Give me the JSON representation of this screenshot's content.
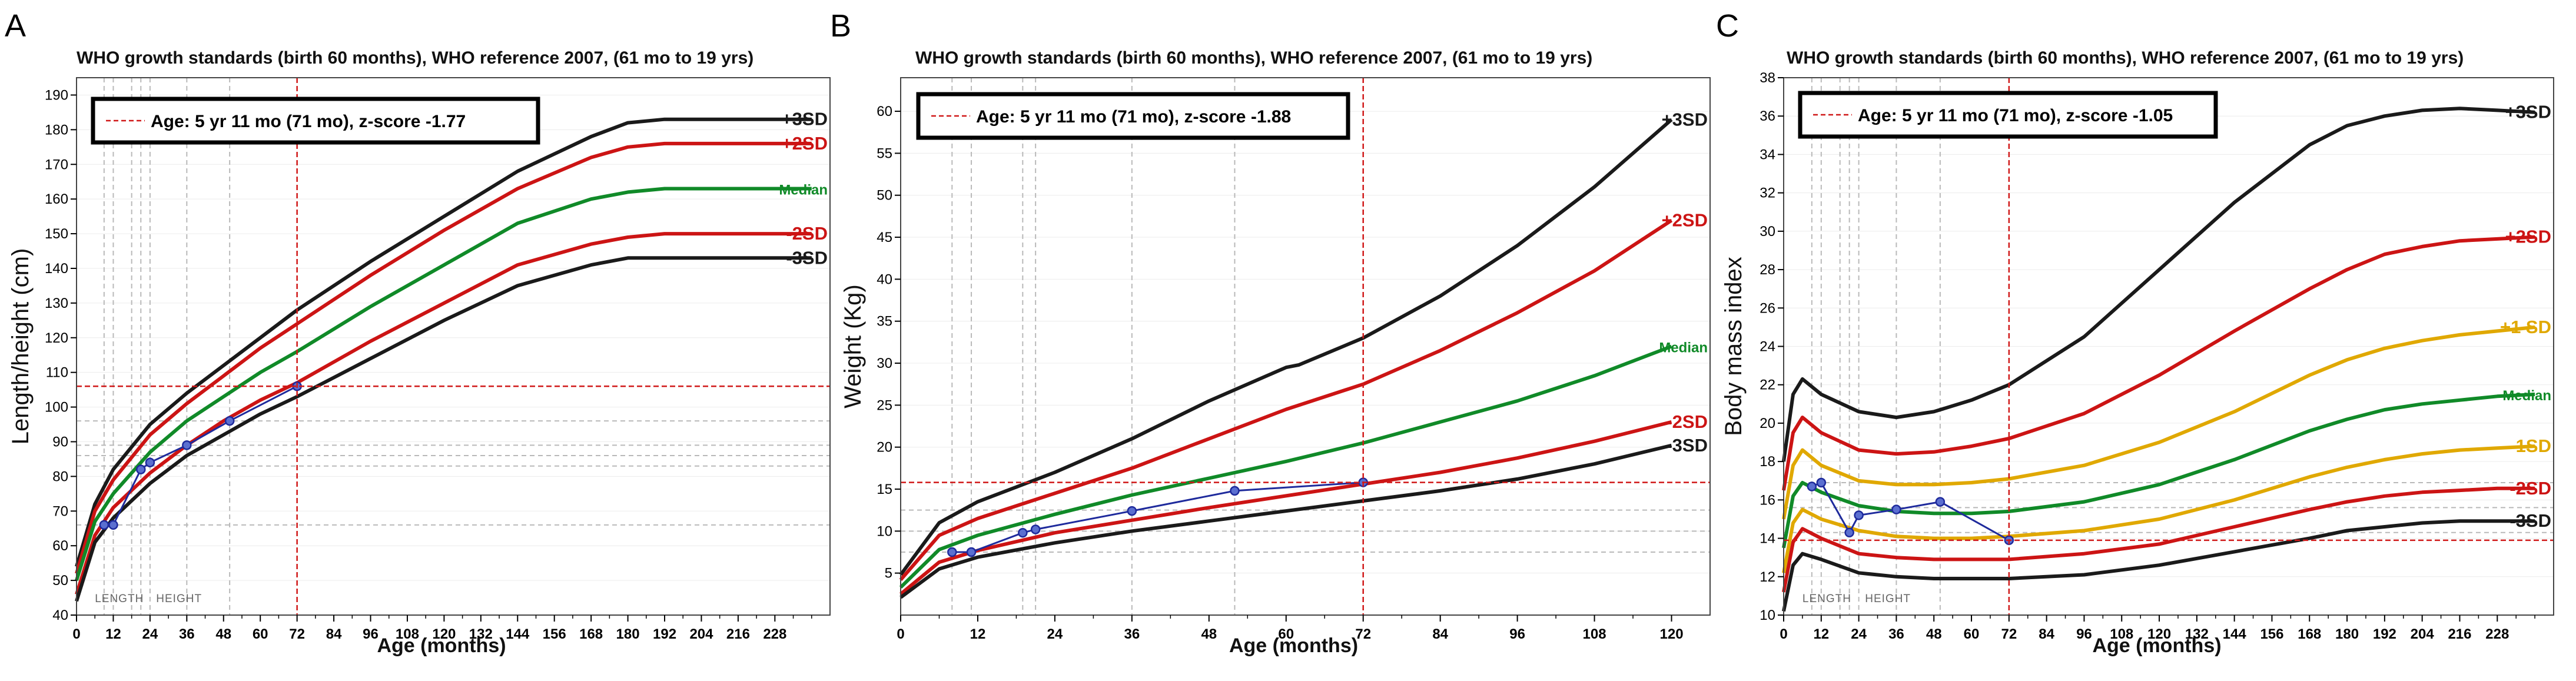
{
  "colors": {
    "sd3": "#1a1a1a",
    "sd2": "#cc1414",
    "median": "#108a28",
    "sd1": "#e0a800",
    "patient": "#1e2a9c",
    "marker": "#d01818",
    "grid": "#b9b9b9",
    "frame": "#000000"
  },
  "chart_data": [
    {
      "type": "line",
      "panel_letter": "A",
      "title": "WHO growth standards (birth 60 months), WHO reference 2007, (61 mo to 19 yrs)",
      "xlabel": "Age (months)",
      "ylabel": "Length/height (cm)",
      "legend_text": "Age: 5 yr 11 mo (71 mo), z-score  -1.77",
      "xlim": [
        0,
        246
      ],
      "ylim": [
        40,
        195
      ],
      "x_ticks": [
        0,
        12,
        24,
        36,
        48,
        60,
        72,
        84,
        96,
        108,
        120,
        132,
        144,
        156,
        168,
        180,
        192,
        204,
        216,
        228
      ],
      "x_minor_ticks": [
        6,
        18,
        30,
        42,
        54,
        66,
        78,
        90,
        102,
        114,
        126,
        138,
        150,
        162,
        174,
        186,
        198,
        210,
        222,
        234,
        240
      ],
      "y_ticks": [
        40,
        50,
        60,
        70,
        80,
        90,
        100,
        110,
        120,
        130,
        140,
        150,
        160,
        170,
        180,
        190
      ],
      "vlines": [
        9,
        12,
        18,
        21,
        24,
        36,
        50
      ],
      "hlines": [
        66,
        83,
        86,
        89,
        96
      ],
      "marker_x": 72,
      "marker_y": 106,
      "phase_labels": [
        {
          "text": "LENGTH",
          "x": 6
        },
        {
          "text": "HEIGHT",
          "x": 26
        }
      ],
      "series": [
        {
          "name": "+3SD",
          "key": "sd3",
          "label_color": "sd3",
          "x": [
            0,
            6,
            12,
            24,
            36,
            48,
            60,
            72,
            96,
            120,
            144,
            168,
            180,
            192,
            204,
            216,
            228,
            240
          ],
          "y": [
            54,
            72,
            82,
            95,
            104,
            112,
            120,
            128,
            142,
            155,
            168,
            178,
            182,
            183,
            183,
            183,
            183,
            183
          ]
        },
        {
          "name": "+2SD",
          "key": "sd2",
          "label_color": "sd2",
          "x": [
            0,
            6,
            12,
            24,
            36,
            48,
            60,
            72,
            96,
            120,
            144,
            168,
            180,
            192,
            204,
            216,
            228,
            240
          ],
          "y": [
            52,
            70,
            79,
            92,
            101,
            109,
            117,
            124,
            138,
            151,
            163,
            172,
            175,
            176,
            176,
            176,
            176,
            176
          ]
        },
        {
          "name": "Median",
          "key": "median",
          "label_color": "median",
          "x": [
            0,
            6,
            12,
            24,
            36,
            48,
            60,
            72,
            96,
            120,
            144,
            168,
            180,
            192,
            204,
            216,
            228,
            240
          ],
          "y": [
            50,
            67,
            75,
            87,
            96,
            103,
            110,
            116,
            129,
            141,
            153,
            160,
            162,
            163,
            163,
            163,
            163,
            163
          ]
        },
        {
          "name": "-2SD",
          "key": "sd2",
          "label_color": "sd2",
          "x": [
            0,
            6,
            12,
            24,
            36,
            48,
            60,
            72,
            96,
            120,
            144,
            168,
            180,
            192,
            204,
            216,
            228,
            240
          ],
          "y": [
            46,
            63,
            71,
            81,
            89,
            96,
            102,
            107,
            119,
            130,
            141,
            147,
            149,
            150,
            150,
            150,
            150,
            150
          ]
        },
        {
          "name": "-3SD",
          "key": "sd3",
          "label_color": "sd3",
          "x": [
            0,
            6,
            12,
            24,
            36,
            48,
            60,
            72,
            96,
            120,
            144,
            168,
            180,
            192,
            204,
            216,
            228,
            240
          ],
          "y": [
            44,
            61,
            68,
            78,
            86,
            92,
            98,
            103,
            114,
            125,
            135,
            141,
            143,
            143,
            143,
            143,
            143,
            143
          ]
        }
      ],
      "patient": {
        "x": [
          9,
          12,
          21,
          24,
          36,
          50,
          72
        ],
        "y": [
          66,
          66,
          82,
          84,
          89,
          96,
          106
        ]
      }
    },
    {
      "type": "line",
      "panel_letter": "B",
      "title": "WHO growth standards (birth 60 months), WHO reference 2007, (61 mo to 19 yrs)",
      "xlabel": "Age (months)",
      "ylabel": "Weight (Kg)",
      "legend_text": "Age: 5 yr 11 mo (71 mo), z-score  -1.88",
      "xlim": [
        0,
        126
      ],
      "ylim": [
        0,
        64
      ],
      "x_ticks": [
        0,
        12,
        24,
        36,
        48,
        60,
        72,
        84,
        96,
        108,
        120
      ],
      "x_minor_ticks": [
        6,
        18,
        30,
        42,
        54,
        66,
        78,
        90,
        102,
        114
      ],
      "y_ticks": [
        5,
        10,
        15,
        20,
        25,
        30,
        35,
        40,
        45,
        50,
        55,
        60
      ],
      "vlines": [
        8,
        11,
        19,
        21,
        36,
        52
      ],
      "hlines": [
        7.5,
        10,
        12.5
      ],
      "marker_x": 72,
      "marker_y": 15.8,
      "phase_labels": [],
      "series": [
        {
          "name": "+3SD",
          "key": "sd3",
          "label_color": "sd3",
          "x": [
            0,
            6,
            12,
            24,
            36,
            48,
            60,
            62,
            72,
            84,
            96,
            108,
            120
          ],
          "y": [
            4.8,
            11,
            13.5,
            17,
            21,
            25.5,
            29.5,
            29.8,
            33,
            38,
            44,
            51,
            59
          ]
        },
        {
          "name": "+2SD",
          "key": "sd2",
          "label_color": "sd2",
          "x": [
            0,
            6,
            12,
            24,
            36,
            48,
            60,
            62,
            72,
            84,
            96,
            108,
            120
          ],
          "y": [
            4.2,
            9.5,
            11.5,
            14.5,
            17.5,
            21,
            24.5,
            25,
            27.5,
            31.5,
            36,
            41,
            47
          ]
        },
        {
          "name": "Median",
          "key": "median",
          "label_color": "median",
          "x": [
            0,
            6,
            12,
            24,
            36,
            48,
            60,
            72,
            84,
            96,
            108,
            120
          ],
          "y": [
            3.3,
            7.8,
            9.5,
            12,
            14.3,
            16.3,
            18.3,
            20.5,
            23,
            25.5,
            28.5,
            32
          ]
        },
        {
          "name": "-2SD",
          "key": "sd2",
          "label_color": "sd2",
          "x": [
            0,
            6,
            12,
            24,
            36,
            48,
            60,
            72,
            84,
            96,
            108,
            120
          ],
          "y": [
            2.5,
            6.3,
            7.7,
            9.8,
            11.3,
            12.8,
            14.2,
            15.6,
            17,
            18.7,
            20.7,
            23
          ]
        },
        {
          "name": "-3SD",
          "key": "sd3",
          "label_color": "sd3",
          "x": [
            0,
            6,
            12,
            24,
            36,
            48,
            60,
            72,
            84,
            96,
            108,
            120
          ],
          "y": [
            2.1,
            5.5,
            6.9,
            8.6,
            10,
            11.2,
            12.4,
            13.6,
            14.8,
            16.2,
            18,
            20.2
          ]
        }
      ],
      "patient": {
        "x": [
          8,
          11,
          19,
          21,
          36,
          52,
          72
        ],
        "y": [
          7.5,
          7.5,
          9.8,
          10.2,
          12.4,
          14.8,
          15.8
        ]
      }
    },
    {
      "type": "line",
      "panel_letter": "C",
      "title": "WHO growth standards (birth 60 months), WHO reference 2007, (61 mo to 19 yrs)",
      "xlabel": "Age (months)",
      "ylabel": "Body mass index",
      "legend_text": "Age: 5 yr 11 mo (71 mo), z-score -1.05",
      "xlim": [
        0,
        246
      ],
      "ylim": [
        10,
        38
      ],
      "x_ticks": [
        0,
        12,
        24,
        36,
        48,
        60,
        72,
        84,
        96,
        108,
        120,
        132,
        144,
        156,
        168,
        180,
        192,
        204,
        216,
        228
      ],
      "x_minor_ticks": [
        6,
        18,
        30,
        42,
        54,
        66,
        78,
        90,
        102,
        114,
        126,
        138,
        150,
        162,
        174,
        186,
        198,
        210,
        222,
        234,
        240
      ],
      "y_ticks": [
        10,
        12,
        14,
        16,
        18,
        20,
        22,
        24,
        26,
        28,
        30,
        32,
        34,
        36,
        38
      ],
      "vlines": [
        9,
        12,
        18,
        21,
        24,
        36,
        50
      ],
      "hlines": [
        14.3,
        15.6,
        16.9
      ],
      "marker_x": 72,
      "marker_y": 13.9,
      "phase_labels": [
        {
          "text": "LENGTH",
          "x": 6
        },
        {
          "text": "HEIGHT",
          "x": 26
        }
      ],
      "series": [
        {
          "name": "+3SD",
          "key": "sd3",
          "label_color": "sd3",
          "x": [
            0,
            3,
            6,
            12,
            24,
            36,
            48,
            60,
            72,
            96,
            120,
            144,
            168,
            180,
            192,
            204,
            216,
            228,
            240
          ],
          "y": [
            18,
            21.5,
            22.3,
            21.5,
            20.6,
            20.3,
            20.6,
            21.2,
            22,
            24.5,
            28,
            31.5,
            34.5,
            35.5,
            36,
            36.3,
            36.4,
            36.3,
            36.2
          ]
        },
        {
          "name": "+2SD",
          "key": "sd2",
          "label_color": "sd2",
          "x": [
            0,
            3,
            6,
            12,
            24,
            36,
            48,
            60,
            72,
            96,
            120,
            144,
            168,
            180,
            192,
            204,
            216,
            228,
            240
          ],
          "y": [
            16.5,
            19.5,
            20.3,
            19.5,
            18.6,
            18.4,
            18.5,
            18.8,
            19.2,
            20.5,
            22.5,
            24.8,
            27,
            28,
            28.8,
            29.2,
            29.5,
            29.6,
            29.7
          ]
        },
        {
          "name": "+1 SD",
          "key": "sd1",
          "label_color": "sd1",
          "x": [
            0,
            3,
            6,
            12,
            24,
            36,
            48,
            60,
            72,
            96,
            120,
            144,
            168,
            180,
            192,
            204,
            216,
            228,
            240
          ],
          "y": [
            15,
            17.8,
            18.6,
            17.8,
            17,
            16.8,
            16.8,
            16.9,
            17.1,
            17.8,
            19,
            20.6,
            22.5,
            23.3,
            23.9,
            24.3,
            24.6,
            24.8,
            25
          ]
        },
        {
          "name": "Median",
          "key": "median",
          "label_color": "median",
          "x": [
            0,
            3,
            6,
            12,
            24,
            36,
            48,
            60,
            72,
            96,
            120,
            144,
            168,
            180,
            192,
            204,
            216,
            228,
            240
          ],
          "y": [
            13.5,
            16.2,
            16.9,
            16.4,
            15.7,
            15.4,
            15.3,
            15.3,
            15.4,
            15.9,
            16.8,
            18.1,
            19.6,
            20.2,
            20.7,
            21,
            21.2,
            21.4,
            21.5
          ]
        },
        {
          "name": "-1SD",
          "key": "sd1",
          "label_color": "sd1",
          "x": [
            0,
            3,
            6,
            12,
            24,
            36,
            48,
            60,
            72,
            96,
            120,
            144,
            168,
            180,
            192,
            204,
            216,
            228,
            240
          ],
          "y": [
            12.2,
            14.8,
            15.5,
            15,
            14.4,
            14.1,
            14,
            14,
            14.1,
            14.4,
            15,
            16,
            17.2,
            17.7,
            18.1,
            18.4,
            18.6,
            18.7,
            18.8
          ]
        },
        {
          "name": "-2SD",
          "key": "sd2",
          "label_color": "sd2",
          "x": [
            0,
            3,
            6,
            12,
            24,
            36,
            48,
            60,
            72,
            96,
            120,
            144,
            168,
            180,
            192,
            204,
            216,
            228,
            240
          ],
          "y": [
            11.2,
            13.8,
            14.5,
            14,
            13.2,
            13,
            12.9,
            12.9,
            12.9,
            13.2,
            13.7,
            14.6,
            15.5,
            15.9,
            16.2,
            16.4,
            16.5,
            16.6,
            16.6
          ]
        },
        {
          "name": "-3SD",
          "key": "sd3",
          "label_color": "sd3",
          "x": [
            0,
            3,
            6,
            12,
            24,
            36,
            48,
            60,
            72,
            96,
            120,
            144,
            168,
            180,
            192,
            204,
            216,
            228,
            240
          ],
          "y": [
            10.2,
            12.6,
            13.2,
            12.9,
            12.2,
            12,
            11.9,
            11.9,
            11.9,
            12.1,
            12.6,
            13.3,
            14,
            14.4,
            14.6,
            14.8,
            14.9,
            14.9,
            14.9
          ]
        }
      ],
      "patient": {
        "x": [
          9,
          12,
          21,
          24,
          36,
          50,
          72
        ],
        "y": [
          16.7,
          16.9,
          14.3,
          15.2,
          15.5,
          15.9,
          13.9
        ]
      }
    }
  ]
}
